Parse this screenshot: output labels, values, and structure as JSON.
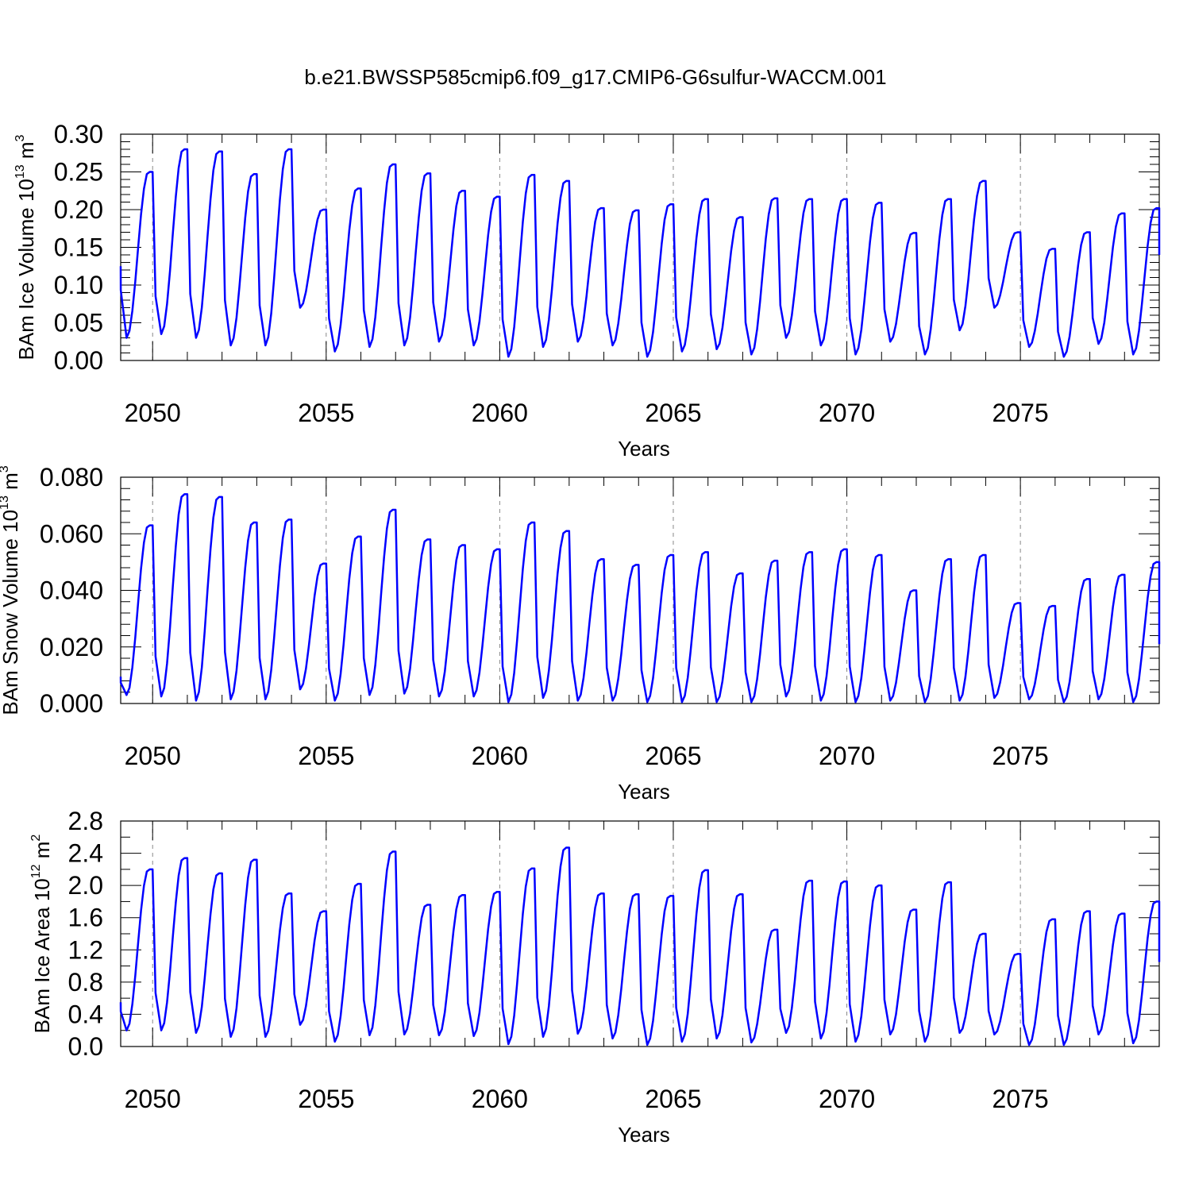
{
  "figure": {
    "title": "b.e21.BWSSP585cmip6.f09_g17.CMIP6-G6sulfur-WACCM.001"
  },
  "colors": {
    "series": "#0000ff",
    "grid": "#888888"
  },
  "chart_data": [
    {
      "type": "line",
      "title": "",
      "xlabel": "Years",
      "ylabel": "BAm Ice Volume 10",
      "ylabel_sup": "13",
      "ylabel_unit": " m",
      "ylabel_unit_sup": "3",
      "xlim": [
        2049.08,
        2079.0
      ],
      "ylim": [
        0.0,
        0.3
      ],
      "yticks": [
        0.0,
        0.05,
        0.1,
        0.15,
        0.2,
        0.25,
        0.3
      ],
      "ytick_labels": [
        "0.00",
        "0.05",
        "0.10",
        "0.15",
        "0.20",
        "0.25",
        "0.30"
      ],
      "ytick_minor": 0.01,
      "xticks": [
        2050,
        2055,
        2060,
        2065,
        2070,
        2075
      ],
      "xtick_labels": [
        "2050",
        "2055",
        "2060",
        "2065",
        "2070",
        "2075"
      ],
      "xtick_minor": 1,
      "grid": "vertical dashed at major x ticks",
      "legend": "none",
      "series": [
        {
          "name": "",
          "cycles": [
            {
              "year": 2049,
              "min": 0.03,
              "max": 0.25
            },
            {
              "year": 2050,
              "min": 0.035,
              "max": 0.28
            },
            {
              "year": 2051,
              "min": 0.03,
              "max": 0.277
            },
            {
              "year": 2052,
              "min": 0.02,
              "max": 0.247
            },
            {
              "year": 2053,
              "min": 0.02,
              "max": 0.28
            },
            {
              "year": 2054,
              "min": 0.07,
              "max": 0.2
            },
            {
              "year": 2055,
              "min": 0.012,
              "max": 0.228
            },
            {
              "year": 2056,
              "min": 0.018,
              "max": 0.26
            },
            {
              "year": 2057,
              "min": 0.02,
              "max": 0.248
            },
            {
              "year": 2058,
              "min": 0.025,
              "max": 0.225
            },
            {
              "year": 2059,
              "min": 0.02,
              "max": 0.217
            },
            {
              "year": 2060,
              "min": 0.005,
              "max": 0.246
            },
            {
              "year": 2061,
              "min": 0.018,
              "max": 0.238
            },
            {
              "year": 2062,
              "min": 0.025,
              "max": 0.202
            },
            {
              "year": 2063,
              "min": 0.02,
              "max": 0.199
            },
            {
              "year": 2064,
              "min": 0.005,
              "max": 0.207
            },
            {
              "year": 2065,
              "min": 0.012,
              "max": 0.214
            },
            {
              "year": 2066,
              "min": 0.015,
              "max": 0.19
            },
            {
              "year": 2067,
              "min": 0.008,
              "max": 0.215
            },
            {
              "year": 2068,
              "min": 0.03,
              "max": 0.214
            },
            {
              "year": 2069,
              "min": 0.02,
              "max": 0.214
            },
            {
              "year": 2070,
              "min": 0.008,
              "max": 0.209
            },
            {
              "year": 2071,
              "min": 0.025,
              "max": 0.169
            },
            {
              "year": 2072,
              "min": 0.008,
              "max": 0.214
            },
            {
              "year": 2073,
              "min": 0.04,
              "max": 0.238
            },
            {
              "year": 2074,
              "min": 0.07,
              "max": 0.17
            },
            {
              "year": 2075,
              "min": 0.018,
              "max": 0.148
            },
            {
              "year": 2076,
              "min": 0.005,
              "max": 0.17
            },
            {
              "year": 2077,
              "min": 0.022,
              "max": 0.195
            },
            {
              "year": 2078,
              "min": 0.008,
              "max": 0.202
            }
          ],
          "start_value": 0.125,
          "end_value": 0.14
        }
      ]
    },
    {
      "type": "line",
      "title": "",
      "xlabel": "Years",
      "ylabel": "BAm Snow Volume 10",
      "ylabel_sup": "13",
      "ylabel_unit": " m",
      "ylabel_unit_sup": "3",
      "xlim": [
        2049.08,
        2079.0
      ],
      "ylim": [
        0.0,
        0.08
      ],
      "yticks": [
        0.0,
        0.02,
        0.04,
        0.06,
        0.08
      ],
      "ytick_labels": [
        "0.000",
        "0.020",
        "0.040",
        "0.060",
        "0.080"
      ],
      "ytick_minor": 0.004,
      "xticks": [
        2050,
        2055,
        2060,
        2065,
        2070,
        2075
      ],
      "xtick_labels": [
        "2050",
        "2055",
        "2060",
        "2065",
        "2070",
        "2075"
      ],
      "xtick_minor": 1,
      "grid": "vertical dashed at major x ticks",
      "legend": "none",
      "series": [
        {
          "name": "",
          "cycles": [
            {
              "year": 2049,
              "min": 0.003,
              "max": 0.063
            },
            {
              "year": 2050,
              "min": 0.0025,
              "max": 0.074
            },
            {
              "year": 2051,
              "min": 0.001,
              "max": 0.073
            },
            {
              "year": 2052,
              "min": 0.0015,
              "max": 0.064
            },
            {
              "year": 2053,
              "min": 0.0015,
              "max": 0.065
            },
            {
              "year": 2054,
              "min": 0.005,
              "max": 0.0495
            },
            {
              "year": 2055,
              "min": 0.001,
              "max": 0.059
            },
            {
              "year": 2056,
              "min": 0.003,
              "max": 0.0685
            },
            {
              "year": 2057,
              "min": 0.0035,
              "max": 0.058
            },
            {
              "year": 2058,
              "min": 0.0025,
              "max": 0.056
            },
            {
              "year": 2059,
              "min": 0.0025,
              "max": 0.0545
            },
            {
              "year": 2060,
              "min": 0.0005,
              "max": 0.064
            },
            {
              "year": 2061,
              "min": 0.002,
              "max": 0.061
            },
            {
              "year": 2062,
              "min": 0.001,
              "max": 0.051
            },
            {
              "year": 2063,
              "min": 0.001,
              "max": 0.049
            },
            {
              "year": 2064,
              "min": 0.0005,
              "max": 0.0525
            },
            {
              "year": 2065,
              "min": 0.0005,
              "max": 0.0535
            },
            {
              "year": 2066,
              "min": 0.0005,
              "max": 0.046
            },
            {
              "year": 2067,
              "min": 0.0005,
              "max": 0.0505
            },
            {
              "year": 2068,
              "min": 0.0025,
              "max": 0.0535
            },
            {
              "year": 2069,
              "min": 0.001,
              "max": 0.0545
            },
            {
              "year": 2070,
              "min": 0.0005,
              "max": 0.0525
            },
            {
              "year": 2071,
              "min": 0.001,
              "max": 0.04
            },
            {
              "year": 2072,
              "min": 0.0005,
              "max": 0.051
            },
            {
              "year": 2073,
              "min": 0.001,
              "max": 0.0525
            },
            {
              "year": 2074,
              "min": 0.002,
              "max": 0.0355
            },
            {
              "year": 2075,
              "min": 0.0015,
              "max": 0.0345
            },
            {
              "year": 2076,
              "min": 0.0005,
              "max": 0.044
            },
            {
              "year": 2077,
              "min": 0.0015,
              "max": 0.0455
            },
            {
              "year": 2078,
              "min": 0.0005,
              "max": 0.05
            }
          ],
          "start_value": 0.0095,
          "end_value": 0.021
        }
      ]
    },
    {
      "type": "line",
      "title": "",
      "xlabel": "Years",
      "ylabel": "BAm Ice Area 10",
      "ylabel_sup": "12",
      "ylabel_unit": " m",
      "ylabel_unit_sup": "2",
      "xlim": [
        2049.08,
        2079.0
      ],
      "ylim": [
        0.0,
        2.8
      ],
      "yticks": [
        0.0,
        0.4,
        0.8,
        1.2,
        1.6,
        2.0,
        2.4,
        2.8
      ],
      "ytick_labels": [
        "0.0",
        "0.4",
        "0.8",
        "1.2",
        "1.6",
        "2.0",
        "2.4",
        "2.8"
      ],
      "ytick_minor": 0.2,
      "xticks": [
        2050,
        2055,
        2060,
        2065,
        2070,
        2075
      ],
      "xtick_labels": [
        "2050",
        "2055",
        "2060",
        "2065",
        "2070",
        "2075"
      ],
      "xtick_minor": 1,
      "grid": "vertical dashed at major x ticks",
      "legend": "none",
      "series": [
        {
          "name": "",
          "cycles": [
            {
              "year": 2049,
              "min": 0.2,
              "max": 2.2
            },
            {
              "year": 2050,
              "min": 0.2,
              "max": 2.34
            },
            {
              "year": 2051,
              "min": 0.17,
              "max": 2.15
            },
            {
              "year": 2052,
              "min": 0.12,
              "max": 2.32
            },
            {
              "year": 2053,
              "min": 0.12,
              "max": 1.9
            },
            {
              "year": 2054,
              "min": 0.27,
              "max": 1.68
            },
            {
              "year": 2055,
              "min": 0.06,
              "max": 2.02
            },
            {
              "year": 2056,
              "min": 0.14,
              "max": 2.42
            },
            {
              "year": 2057,
              "min": 0.15,
              "max": 1.76
            },
            {
              "year": 2058,
              "min": 0.14,
              "max": 1.88
            },
            {
              "year": 2059,
              "min": 0.13,
              "max": 1.92
            },
            {
              "year": 2060,
              "min": 0.03,
              "max": 2.21
            },
            {
              "year": 2061,
              "min": 0.12,
              "max": 2.47
            },
            {
              "year": 2062,
              "min": 0.16,
              "max": 1.9
            },
            {
              "year": 2063,
              "min": 0.1,
              "max": 1.89
            },
            {
              "year": 2064,
              "min": 0.02,
              "max": 1.87
            },
            {
              "year": 2065,
              "min": 0.06,
              "max": 2.19
            },
            {
              "year": 2066,
              "min": 0.1,
              "max": 1.89
            },
            {
              "year": 2067,
              "min": 0.05,
              "max": 1.45
            },
            {
              "year": 2068,
              "min": 0.17,
              "max": 2.06
            },
            {
              "year": 2069,
              "min": 0.1,
              "max": 2.05
            },
            {
              "year": 2070,
              "min": 0.06,
              "max": 2.0
            },
            {
              "year": 2071,
              "min": 0.15,
              "max": 1.7
            },
            {
              "year": 2072,
              "min": 0.06,
              "max": 2.04
            },
            {
              "year": 2073,
              "min": 0.17,
              "max": 1.4
            },
            {
              "year": 2074,
              "min": 0.15,
              "max": 1.15
            },
            {
              "year": 2075,
              "min": 0.02,
              "max": 1.58
            },
            {
              "year": 2076,
              "min": 0.02,
              "max": 1.68
            },
            {
              "year": 2077,
              "min": 0.15,
              "max": 1.65
            },
            {
              "year": 2078,
              "min": 0.04,
              "max": 1.8
            }
          ],
          "start_value": 0.55,
          "end_value": 1.05
        }
      ]
    }
  ]
}
